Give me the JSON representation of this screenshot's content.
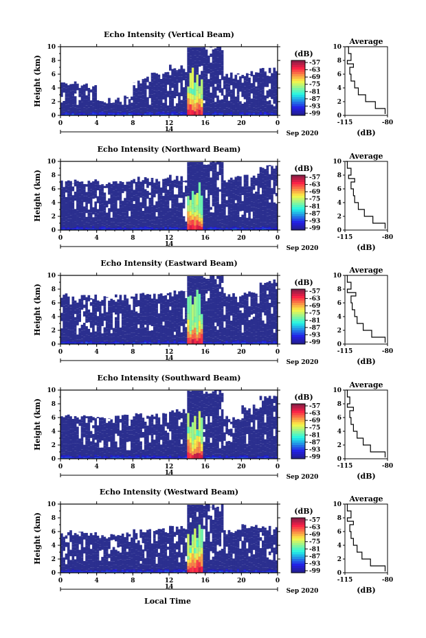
{
  "figure": {
    "xlabel": "Local Time",
    "date_label": "Sep 2020",
    "day_label": "14",
    "average_title": "Average",
    "colorbar_unit": "(dB)",
    "average_xlabel": "(dB)"
  },
  "colors": {
    "low": "#2b2f8f",
    "mid": "#2fb3c9",
    "high": "#d3202a"
  },
  "chart_data": [
    {
      "type": "heatmap",
      "title": "Echo Intensity (Vertical Beam)",
      "xlabel": "Local Time",
      "ylabel": "Height (km)",
      "xticks": [
        "0",
        "4",
        "8",
        "12",
        "16",
        "20",
        "0"
      ],
      "yticks": [
        "0",
        "2",
        "4",
        "6",
        "8",
        "10"
      ],
      "xlim": [
        0,
        24
      ],
      "ylim": [
        0,
        10
      ],
      "colorbar": {
        "label": "(dB)",
        "ticks": [
          "-57",
          "-63",
          "-69",
          "-75",
          "-81",
          "-87",
          "-93",
          "-99"
        ]
      },
      "top_km": [
        4.8,
        4.2,
        2.2,
        2.6,
        5.2,
        6.3,
        7.0,
        9.9,
        9.9,
        5.8,
        6.0,
        6.5
      ],
      "profile": {
        "title": "Average",
        "xlabel": "(dB)",
        "xticks": [
          "-115",
          "-80"
        ],
        "xlim": [
          -115,
          -80
        ],
        "yticks": [
          "0",
          "2",
          "4",
          "6",
          "8",
          "10"
        ],
        "ylim": [
          0,
          10
        ],
        "heights_km": [
          0.2,
          1,
          2,
          3,
          4,
          5,
          6,
          7,
          7.5,
          8,
          9,
          10
        ],
        "values_db": [
          -82,
          -90,
          -98,
          -104,
          -107,
          -110,
          -111,
          -108,
          -113,
          -110,
          -112,
          -114
        ]
      }
    },
    {
      "type": "heatmap",
      "title": "Echo Intensity (Northward Beam)",
      "xlabel": "Local Time",
      "ylabel": "Height (km)",
      "xticks": [
        "0",
        "4",
        "8",
        "12",
        "16",
        "20",
        "0"
      ],
      "yticks": [
        "0",
        "2",
        "4",
        "6",
        "8",
        "10"
      ],
      "xlim": [
        0,
        24
      ],
      "ylim": [
        0,
        10
      ],
      "colorbar": {
        "label": "(dB)",
        "ticks": [
          "-57",
          "-63",
          "-69",
          "-75",
          "-81",
          "-87",
          "-93",
          "-99"
        ]
      },
      "top_km": [
        7.2,
        7.0,
        6.8,
        7.0,
        7.4,
        7.2,
        7.6,
        9.9,
        9.9,
        7.6,
        7.8,
        9.2
      ],
      "profile": {
        "title": "Average",
        "xlabel": "(dB)",
        "xticks": [
          "-115",
          "-80"
        ],
        "xlim": [
          -115,
          -80
        ],
        "heights_km": [
          0.2,
          1,
          2,
          3,
          4,
          5,
          6,
          7,
          7.5,
          8,
          9,
          10
        ],
        "values_db": [
          -82,
          -92,
          -99,
          -104,
          -107,
          -108,
          -110,
          -107,
          -112,
          -110,
          -113,
          -114
        ]
      }
    },
    {
      "type": "heatmap",
      "title": "Echo Intensity (Eastward Beam)",
      "xlabel": "Local Time",
      "ylabel": "Height (km)",
      "xticks": [
        "0",
        "4",
        "8",
        "12",
        "16",
        "20",
        "0"
      ],
      "yticks": [
        "0",
        "2",
        "4",
        "6",
        "8",
        "10"
      ],
      "xlim": [
        0,
        24
      ],
      "ylim": [
        0,
        10
      ],
      "colorbar": {
        "label": "(dB)",
        "ticks": [
          "-57",
          "-63",
          "-69",
          "-75",
          "-81",
          "-87",
          "-93",
          "-99"
        ]
      },
      "top_km": [
        7.0,
        6.8,
        6.6,
        6.8,
        7.2,
        7.0,
        7.6,
        9.9,
        9.9,
        7.0,
        7.4,
        9.0
      ],
      "profile": {
        "title": "Average",
        "xlabel": "(dB)",
        "xticks": [
          "-115",
          "-80"
        ],
        "xlim": [
          -115,
          -80
        ],
        "heights_km": [
          0.2,
          1,
          2,
          3,
          4,
          5,
          6,
          7,
          7.5,
          8,
          9,
          10
        ],
        "values_db": [
          -82,
          -93,
          -100,
          -105,
          -107,
          -109,
          -110,
          -106,
          -113,
          -110,
          -113,
          -114
        ]
      }
    },
    {
      "type": "heatmap",
      "title": "Echo Intensity (Southward Beam)",
      "xlabel": "Local Time",
      "ylabel": "Height (km)",
      "xticks": [
        "0",
        "4",
        "8",
        "12",
        "16",
        "20",
        "0"
      ],
      "yticks": [
        "0",
        "2",
        "4",
        "6",
        "8",
        "10"
      ],
      "xlim": [
        0,
        24
      ],
      "ylim": [
        0,
        10
      ],
      "colorbar": {
        "label": "(dB)",
        "ticks": [
          "-57",
          "-63",
          "-69",
          "-75",
          "-81",
          "-87",
          "-93",
          "-99"
        ]
      },
      "top_km": [
        6.2,
        6.0,
        5.8,
        6.0,
        6.2,
        6.4,
        7.0,
        9.9,
        9.9,
        5.8,
        7.6,
        9.0
      ],
      "profile": {
        "title": "Average",
        "xlabel": "(dB)",
        "xticks": [
          "-115",
          "-80"
        ],
        "xlim": [
          -115,
          -80
        ],
        "heights_km": [
          0.2,
          1,
          2,
          3,
          4,
          5,
          6,
          7,
          7.5,
          8,
          9,
          10
        ],
        "values_db": [
          -82,
          -94,
          -100,
          -105,
          -108,
          -110,
          -111,
          -108,
          -113,
          -111,
          -113,
          -114
        ]
      }
    },
    {
      "type": "heatmap",
      "title": "Echo Intensity (Westward Beam)",
      "xlabel": "Local Time",
      "ylabel": "Height (km)",
      "xticks": [
        "0",
        "4",
        "8",
        "12",
        "16",
        "20",
        "0"
      ],
      "yticks": [
        "0",
        "2",
        "4",
        "6",
        "8",
        "10"
      ],
      "xlim": [
        0,
        24
      ],
      "ylim": [
        0,
        10
      ],
      "colorbar": {
        "label": "(dB)",
        "ticks": [
          "-57",
          "-63",
          "-69",
          "-75",
          "-81",
          "-87",
          "-93",
          "-99"
        ]
      },
      "top_km": [
        5.8,
        5.6,
        5.4,
        5.6,
        6.0,
        6.2,
        6.4,
        9.9,
        9.9,
        6.0,
        6.8,
        6.4
      ],
      "profile": {
        "title": "Average",
        "xlabel": "(dB)",
        "xticks": [
          "-115",
          "-80"
        ],
        "xlim": [
          -115,
          -80
        ],
        "heights_km": [
          0.2,
          1,
          2,
          3,
          4,
          5,
          6,
          7,
          7.5,
          8,
          9,
          10
        ],
        "values_db": [
          -82,
          -94,
          -101,
          -105,
          -108,
          -110,
          -111,
          -108,
          -113,
          -110,
          -113,
          -114
        ]
      }
    }
  ]
}
